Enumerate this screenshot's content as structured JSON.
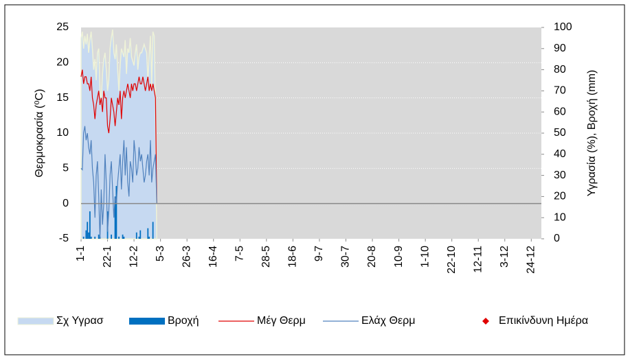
{
  "chart_data": {
    "type": "combo",
    "ylabel": "Θερμοκρασία (⁰C)",
    "y2label": "Υγρασία (%), Βροχή (mm)",
    "x": [
      1,
      2,
      3,
      4,
      5,
      6,
      7,
      8,
      9,
      10,
      11,
      12,
      13,
      14,
      15,
      16,
      17,
      18,
      19,
      20,
      21,
      22,
      23,
      24,
      25,
      26,
      27,
      28,
      29,
      30,
      31,
      32,
      33,
      34,
      35,
      36,
      37,
      38,
      39,
      40,
      41,
      42,
      43,
      44,
      45,
      46,
      47,
      48,
      49,
      50,
      51,
      52,
      53,
      54,
      55,
      56,
      57,
      58,
      59,
      60,
      61
    ],
    "xlim": [
      1,
      366
    ],
    "xticks": [
      {
        "value": 1,
        "label": "1-1"
      },
      {
        "value": 22,
        "label": "22-1"
      },
      {
        "value": 43,
        "label": "12-2"
      },
      {
        "value": 64,
        "label": "5-3"
      },
      {
        "value": 85,
        "label": "26-3"
      },
      {
        "value": 106,
        "label": "16-4"
      },
      {
        "value": 127,
        "label": "7-5"
      },
      {
        "value": 148,
        "label": "28-5"
      },
      {
        "value": 169,
        "label": "18-6"
      },
      {
        "value": 190,
        "label": "9-7"
      },
      {
        "value": 211,
        "label": "30-7"
      },
      {
        "value": 232,
        "label": "20-8"
      },
      {
        "value": 253,
        "label": "10-9"
      },
      {
        "value": 274,
        "label": "1-10"
      },
      {
        "value": 295,
        "label": "22-10"
      },
      {
        "value": 316,
        "label": "12-11"
      },
      {
        "value": 337,
        "label": "3-12"
      },
      {
        "value": 358,
        "label": "24-12"
      }
    ],
    "ylim": [
      -5,
      25
    ],
    "yticks": [
      -5,
      0,
      5,
      10,
      15,
      20,
      25
    ],
    "y2lim": [
      0,
      100
    ],
    "y2ticks": [
      0,
      10,
      20,
      30,
      40,
      50,
      60,
      70,
      80,
      90,
      100
    ],
    "grid": true,
    "series": [
      {
        "name": "Σχ Υγρασ",
        "kind": "area",
        "axis": "y2",
        "color": "#c6d9f1",
        "values": [
          95,
          98,
          90,
          96,
          92,
          97,
          88,
          94,
          98,
          90,
          80,
          85,
          75,
          88,
          90,
          70,
          65,
          78,
          85,
          88,
          80,
          70,
          75,
          90,
          95,
          99,
          88,
          85,
          92,
          80,
          70,
          82,
          90,
          88,
          86,
          94,
          78,
          90,
          88,
          95,
          86,
          84,
          82,
          88,
          92,
          80,
          86,
          88,
          88,
          90,
          92,
          90,
          88,
          75,
          86,
          96,
          72,
          98,
          96,
          60,
          0
        ]
      },
      {
        "name": "Βροχή",
        "kind": "bar",
        "axis": "y2",
        "color": "#0070c0",
        "values": [
          0,
          0,
          1,
          0,
          4,
          8,
          3,
          13,
          1,
          0,
          0,
          1,
          0,
          0,
          2,
          1,
          0,
          0,
          0,
          0,
          0,
          13,
          0,
          0,
          2,
          0,
          0,
          20,
          25,
          0,
          1,
          0,
          0,
          2,
          1,
          0,
          0,
          0,
          0,
          0,
          0,
          0,
          0,
          0,
          3,
          0,
          1,
          4,
          0,
          0,
          0,
          0,
          0,
          5,
          1,
          0,
          0,
          8,
          0,
          0,
          0
        ]
      },
      {
        "name": "Μέγ Θερμ",
        "kind": "line",
        "color": "#e00000",
        "values": [
          18,
          19,
          17,
          18,
          18,
          17,
          17,
          16,
          18,
          15,
          14,
          12,
          14,
          15,
          16,
          14,
          15,
          13,
          16,
          15,
          15,
          11,
          10,
          12,
          15,
          14,
          13,
          11,
          13,
          15,
          14,
          16,
          12,
          15,
          16,
          15,
          16,
          17,
          16,
          15,
          17,
          16,
          17,
          17,
          16,
          17,
          18,
          17,
          17,
          18,
          17,
          16,
          17,
          18,
          16,
          17,
          16,
          17,
          16,
          15,
          0
        ]
      },
      {
        "name": "Ελάχ Θερμ",
        "kind": "line",
        "color": "#4f81bd",
        "values": [
          5,
          4.8,
          10,
          11,
          9,
          10,
          8,
          7,
          9,
          5,
          3,
          -2,
          4,
          6,
          1,
          -5,
          2,
          -3,
          0,
          7,
          3,
          -4,
          -1,
          4,
          6,
          2,
          -2,
          1,
          0,
          3,
          5,
          7,
          2,
          6,
          9,
          4,
          8,
          3,
          1,
          6,
          5,
          3,
          9,
          7,
          4,
          5,
          8,
          6,
          7,
          5,
          3,
          4,
          6,
          7,
          4,
          9,
          3,
          5,
          6,
          7,
          0
        ]
      },
      {
        "name": "Επικίνδυνη Ημέρα",
        "kind": "point",
        "color": "#e00000",
        "values": [
          null,
          null,
          null,
          null,
          null,
          null,
          null,
          null,
          null,
          null,
          null,
          null,
          null,
          null,
          null,
          null,
          null,
          null,
          null,
          null,
          null,
          null,
          null,
          null,
          null,
          null,
          null,
          null,
          null,
          null,
          null,
          null,
          null,
          null,
          null,
          null,
          null,
          null,
          null,
          null,
          null,
          null,
          null,
          null,
          null,
          null,
          null,
          null,
          null,
          null,
          null,
          null,
          null,
          null,
          null,
          null,
          null,
          null,
          null,
          null,
          null
        ]
      }
    ]
  }
}
